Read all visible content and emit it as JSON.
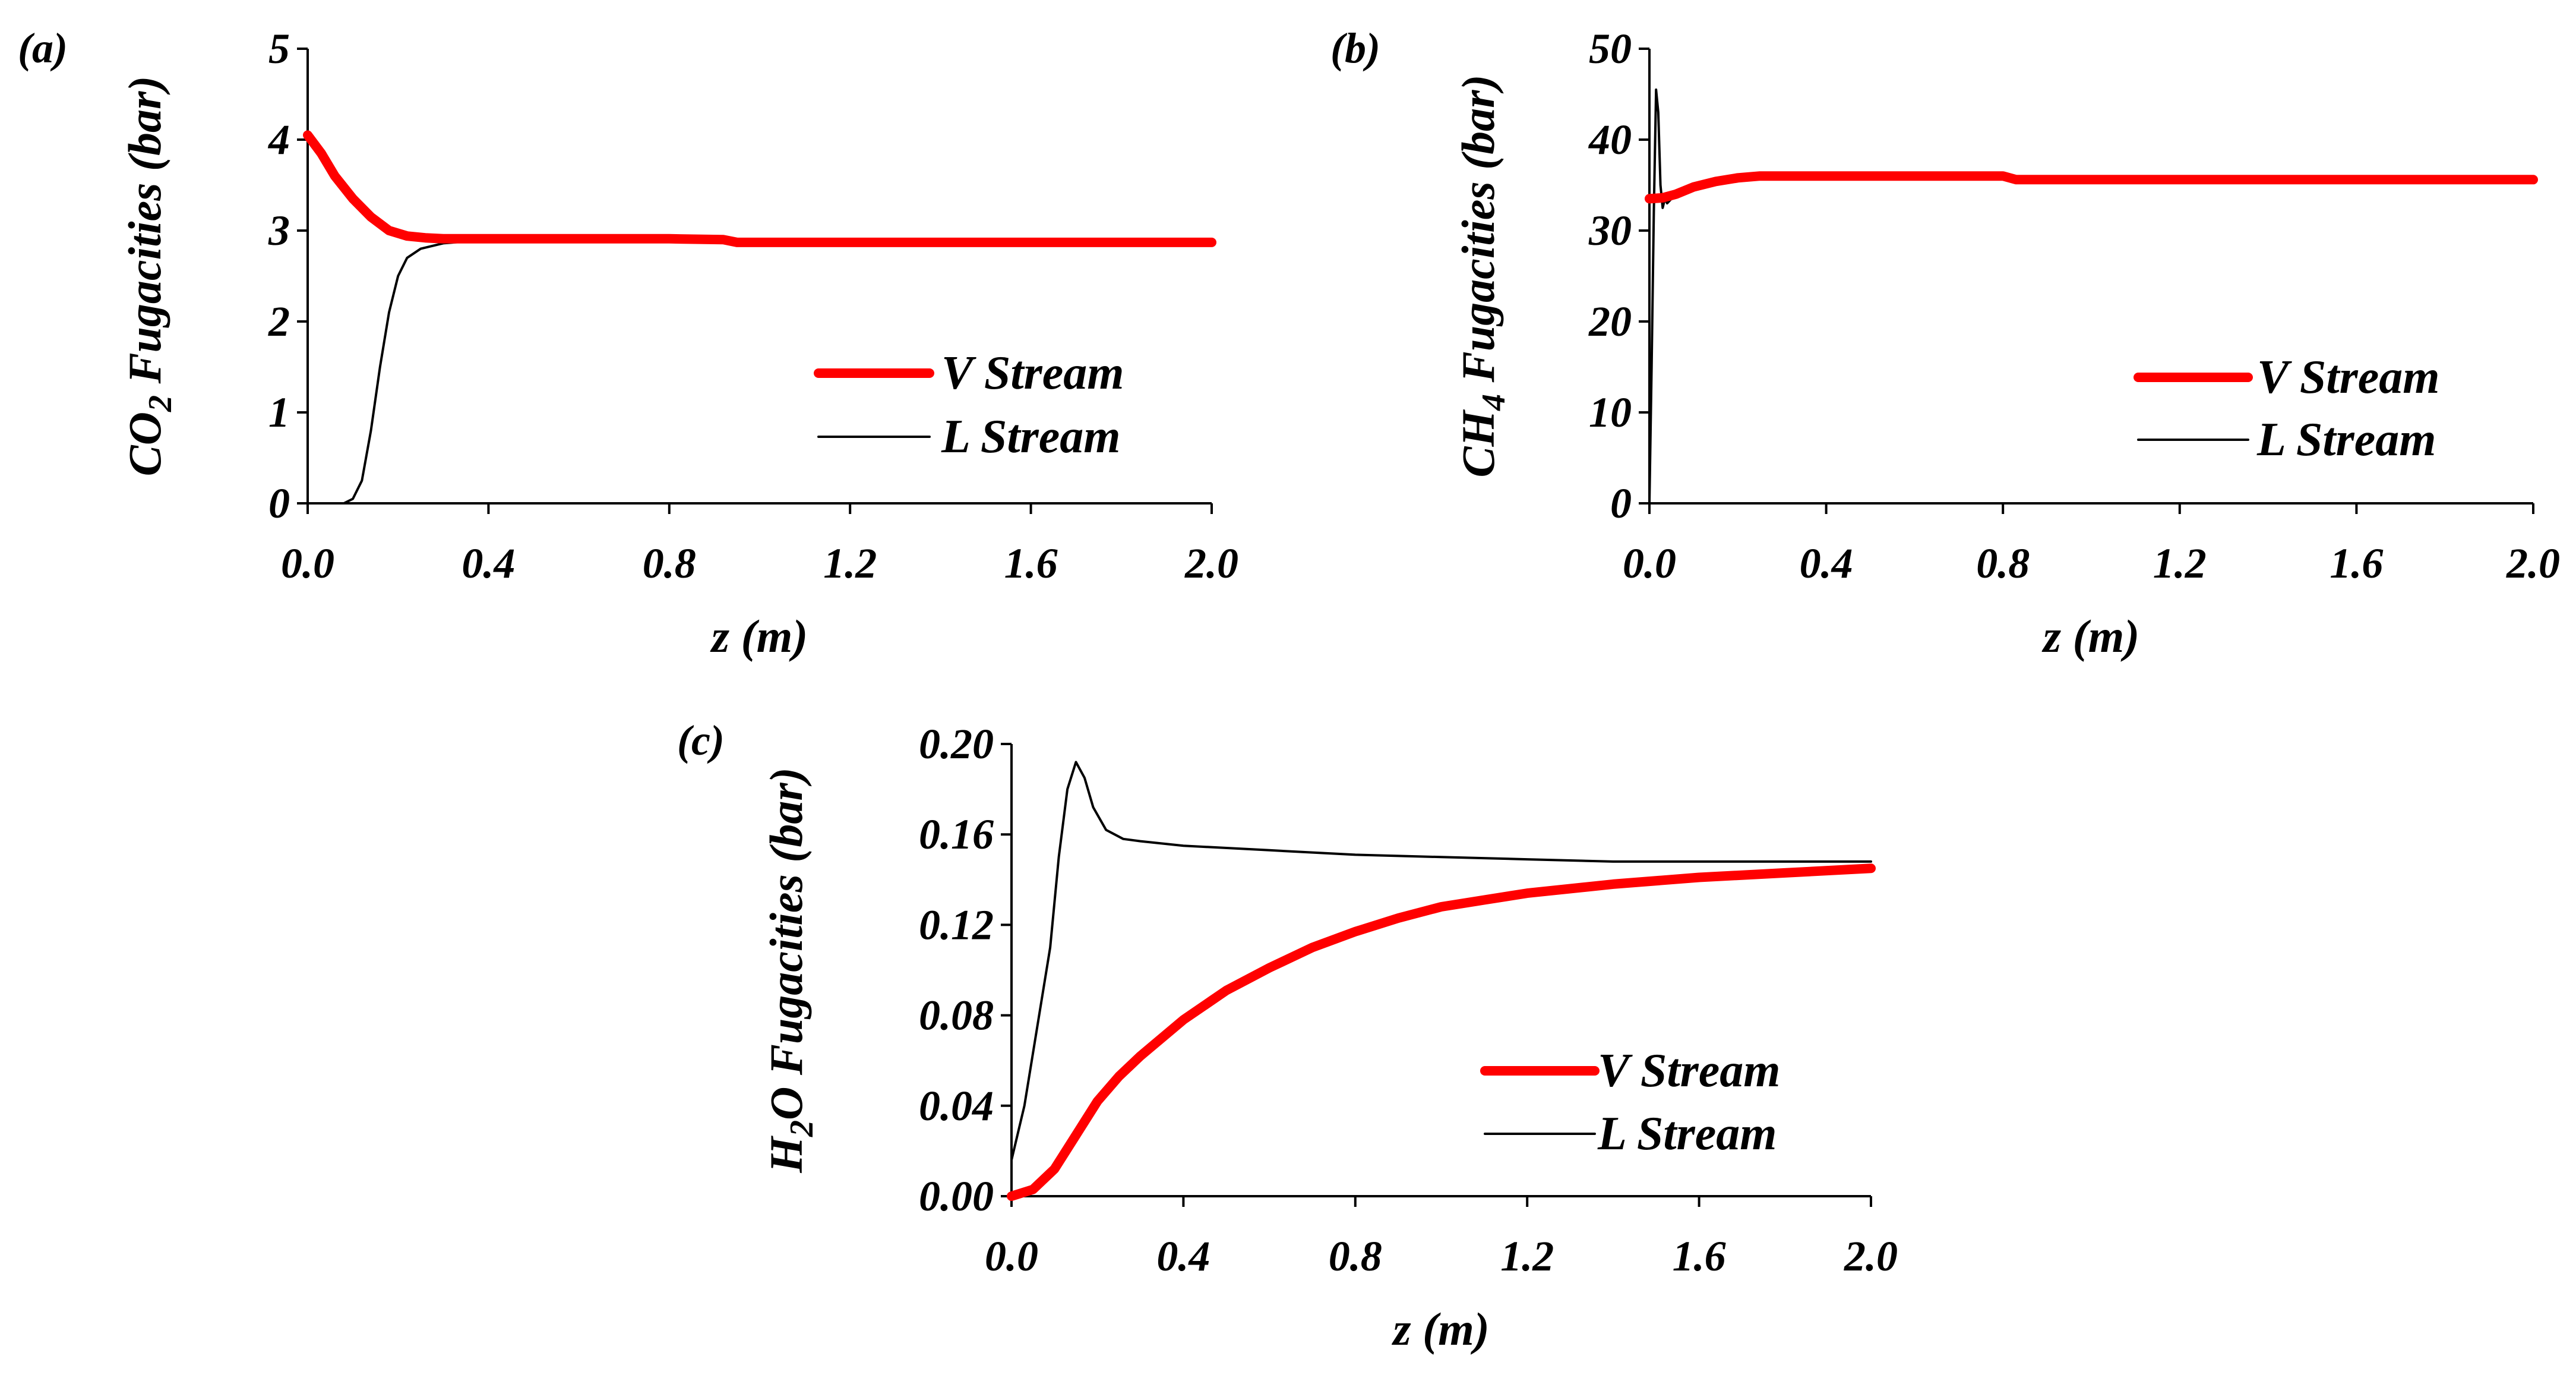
{
  "colors": {
    "v_stream": "#ff0000",
    "l_stream": "#000000",
    "axis": "#000000",
    "background": "#ffffff"
  },
  "chart_data": [
    {
      "panel": "(a)",
      "type": "line",
      "xlabel": "z (m)",
      "ylabel": {
        "species": "CO",
        "sub": "2",
        "rest": " Fugacities (bar)"
      },
      "xlim": [
        0,
        2
      ],
      "ylim": [
        0,
        5
      ],
      "xticks": [
        "0.0",
        "0.4",
        "0.8",
        "1.2",
        "1.6",
        "2.0"
      ],
      "yticks": [
        "0",
        "1",
        "2",
        "3",
        "4",
        "5"
      ],
      "legend": "right-middle",
      "grid": false,
      "series": [
        {
          "name": "V Stream",
          "color": "#ff0000",
          "x": [
            0,
            0.03,
            0.06,
            0.1,
            0.14,
            0.18,
            0.22,
            0.26,
            0.3,
            0.4,
            0.6,
            0.8,
            0.92,
            0.95,
            1.2,
            1.6,
            2.0
          ],
          "y": [
            4.05,
            3.85,
            3.6,
            3.35,
            3.15,
            3.0,
            2.94,
            2.92,
            2.91,
            2.91,
            2.91,
            2.91,
            2.9,
            2.87,
            2.87,
            2.87,
            2.87
          ]
        },
        {
          "name": "L Stream",
          "color": "#000000",
          "x": [
            0,
            0.08,
            0.1,
            0.12,
            0.14,
            0.16,
            0.18,
            0.2,
            0.22,
            0.25,
            0.3,
            0.35,
            0.4,
            0.8,
            1.2,
            1.6,
            2.0
          ],
          "y": [
            0,
            0,
            0.05,
            0.25,
            0.8,
            1.5,
            2.1,
            2.5,
            2.7,
            2.8,
            2.86,
            2.88,
            2.89,
            2.89,
            2.87,
            2.87,
            2.87
          ]
        }
      ]
    },
    {
      "panel": "(b)",
      "type": "line",
      "xlabel": "z (m)",
      "ylabel": {
        "species": "CH",
        "sub": "4",
        "rest": " Fugacities (bar)"
      },
      "xlim": [
        0,
        2
      ],
      "ylim": [
        0,
        50
      ],
      "xticks": [
        "0.0",
        "0.4",
        "0.8",
        "1.2",
        "1.6",
        "2.0"
      ],
      "yticks": [
        "0",
        "10",
        "20",
        "30",
        "40",
        "50"
      ],
      "legend": "right-middle",
      "grid": false,
      "series": [
        {
          "name": "V Stream",
          "color": "#ff0000",
          "x": [
            0,
            0.03,
            0.06,
            0.1,
            0.15,
            0.2,
            0.25,
            0.4,
            0.6,
            0.8,
            0.83,
            1.2,
            1.6,
            2.0
          ],
          "y": [
            33.5,
            33.6,
            34,
            34.8,
            35.4,
            35.8,
            36,
            36,
            36,
            36,
            35.6,
            35.6,
            35.6,
            35.6
          ]
        },
        {
          "name": "L Stream",
          "color": "#000000",
          "x": [
            0,
            0.005,
            0.01,
            0.015,
            0.02,
            0.025,
            0.03,
            0.035,
            0.04,
            0.05,
            0.06,
            0.08,
            0.1,
            0.15,
            0.2,
            0.25,
            0.4,
            0.8,
            0.83,
            1.2,
            1.6,
            2.0
          ],
          "y": [
            0,
            15,
            32,
            45.5,
            43,
            35,
            32.5,
            33.5,
            33,
            33.5,
            34,
            34.5,
            35,
            35.5,
            35.8,
            36,
            36,
            36,
            35.6,
            35.6,
            35.6,
            35.6
          ]
        }
      ]
    },
    {
      "panel": "(c)",
      "type": "line",
      "xlabel": "z (m)",
      "ylabel": {
        "species": "H",
        "sub": "2",
        "rest": "O Fugacities (bar)"
      },
      "xlim": [
        0,
        2
      ],
      "ylim": [
        0,
        0.2
      ],
      "xticks": [
        "0.0",
        "0.4",
        "0.8",
        "1.2",
        "1.6",
        "2.0"
      ],
      "yticks": [
        "0.00",
        "0.04",
        "0.08",
        "0.12",
        "0.16",
        "0.20"
      ],
      "legend": "right-middle",
      "grid": false,
      "series": [
        {
          "name": "V Stream",
          "color": "#ff0000",
          "x": [
            0,
            0.05,
            0.1,
            0.15,
            0.2,
            0.25,
            0.3,
            0.4,
            0.5,
            0.6,
            0.7,
            0.8,
            0.9,
            1.0,
            1.1,
            1.2,
            1.4,
            1.6,
            1.8,
            2.0
          ],
          "y": [
            0,
            0.003,
            0.012,
            0.027,
            0.042,
            0.053,
            0.062,
            0.078,
            0.091,
            0.101,
            0.11,
            0.117,
            0.123,
            0.128,
            0.131,
            0.134,
            0.138,
            0.141,
            0.143,
            0.145
          ]
        },
        {
          "name": "L Stream",
          "color": "#000000",
          "x": [
            0,
            0.03,
            0.06,
            0.09,
            0.11,
            0.13,
            0.15,
            0.17,
            0.19,
            0.22,
            0.26,
            0.3,
            0.4,
            0.6,
            0.8,
            1.0,
            1.2,
            1.4,
            1.6,
            1.8,
            2.0
          ],
          "y": [
            0.016,
            0.04,
            0.075,
            0.11,
            0.15,
            0.18,
            0.192,
            0.185,
            0.172,
            0.162,
            0.158,
            0.157,
            0.155,
            0.153,
            0.151,
            0.15,
            0.149,
            0.148,
            0.148,
            0.148,
            0.148
          ]
        }
      ]
    }
  ]
}
